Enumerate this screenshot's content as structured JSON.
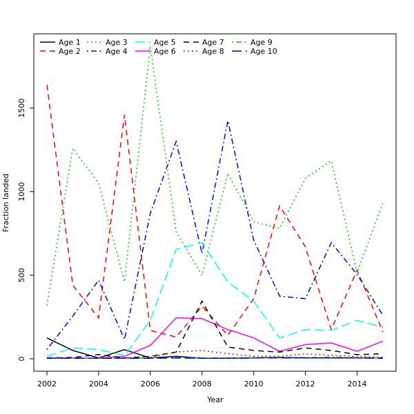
{
  "chart_data": {
    "type": "line",
    "title": "",
    "xlabel": "Year",
    "ylabel": "Fraction landed",
    "xlim": [
      2002,
      2015
    ],
    "ylim": [
      0,
      1870
    ],
    "xticks": [
      2002,
      2004,
      2006,
      2008,
      2010,
      2012,
      2014
    ],
    "yticks": [
      0,
      500,
      1000,
      1500
    ],
    "grid": false,
    "legend_position": "top-left",
    "x": [
      2002,
      2003,
      2004,
      2005,
      2006,
      2007,
      2008,
      2009,
      2010,
      2011,
      2012,
      2013,
      2014,
      2015
    ],
    "series": [
      {
        "name": "Age 1",
        "color": "#000000",
        "dash": "solid",
        "values": [
          125,
          50,
          5,
          55,
          5,
          15,
          3,
          3,
          5,
          8,
          5,
          5,
          5,
          5
        ]
      },
      {
        "name": "Age 2",
        "color": "#ff0000",
        "dash": "dashed",
        "values": [
          1640,
          440,
          245,
          1460,
          170,
          130,
          315,
          140,
          360,
          915,
          670,
          175,
          530,
          160
        ]
      },
      {
        "name": "Age 3",
        "color": "#00cd00",
        "dash": "dotted",
        "values": [
          320,
          1260,
          1050,
          460,
          1870,
          760,
          500,
          1110,
          820,
          780,
          1080,
          1185,
          515,
          935
        ]
      },
      {
        "name": "Age 4",
        "color": "#0000ff",
        "dash": "dotdash",
        "values": [
          55,
          255,
          470,
          115,
          870,
          1300,
          630,
          1425,
          710,
          375,
          360,
          695,
          505,
          260
        ]
      },
      {
        "name": "Age 5",
        "color": "#00ffff",
        "dash": "longdash",
        "values": [
          15,
          65,
          55,
          20,
          230,
          655,
          695,
          460,
          345,
          125,
          175,
          170,
          230,
          190
        ]
      },
      {
        "name": "Age 6",
        "color": "#ff00ff",
        "dash": "solid",
        "values": [
          3,
          5,
          3,
          15,
          80,
          245,
          240,
          175,
          125,
          45,
          85,
          95,
          45,
          105
        ]
      },
      {
        "name": "Age 7",
        "color": "#000000",
        "dash": "dashed",
        "values": [
          5,
          8,
          25,
          5,
          15,
          40,
          345,
          70,
          50,
          40,
          65,
          50,
          25,
          30
        ]
      },
      {
        "name": "Age 8",
        "color": "#ff0000",
        "dash": "dotted",
        "values": [
          3,
          3,
          3,
          5,
          10,
          40,
          50,
          30,
          15,
          15,
          30,
          20,
          15,
          10
        ]
      },
      {
        "name": "Age 9",
        "color": "#00cd00",
        "dash": "dotdash",
        "values": [
          3,
          3,
          3,
          3,
          5,
          8,
          5,
          5,
          8,
          10,
          8,
          10,
          8,
          5
        ]
      },
      {
        "name": "Age 10",
        "color": "#0000ff",
        "dash": "longdash",
        "values": [
          3,
          3,
          3,
          3,
          3,
          5,
          3,
          3,
          5,
          5,
          5,
          5,
          5,
          3
        ]
      }
    ]
  }
}
